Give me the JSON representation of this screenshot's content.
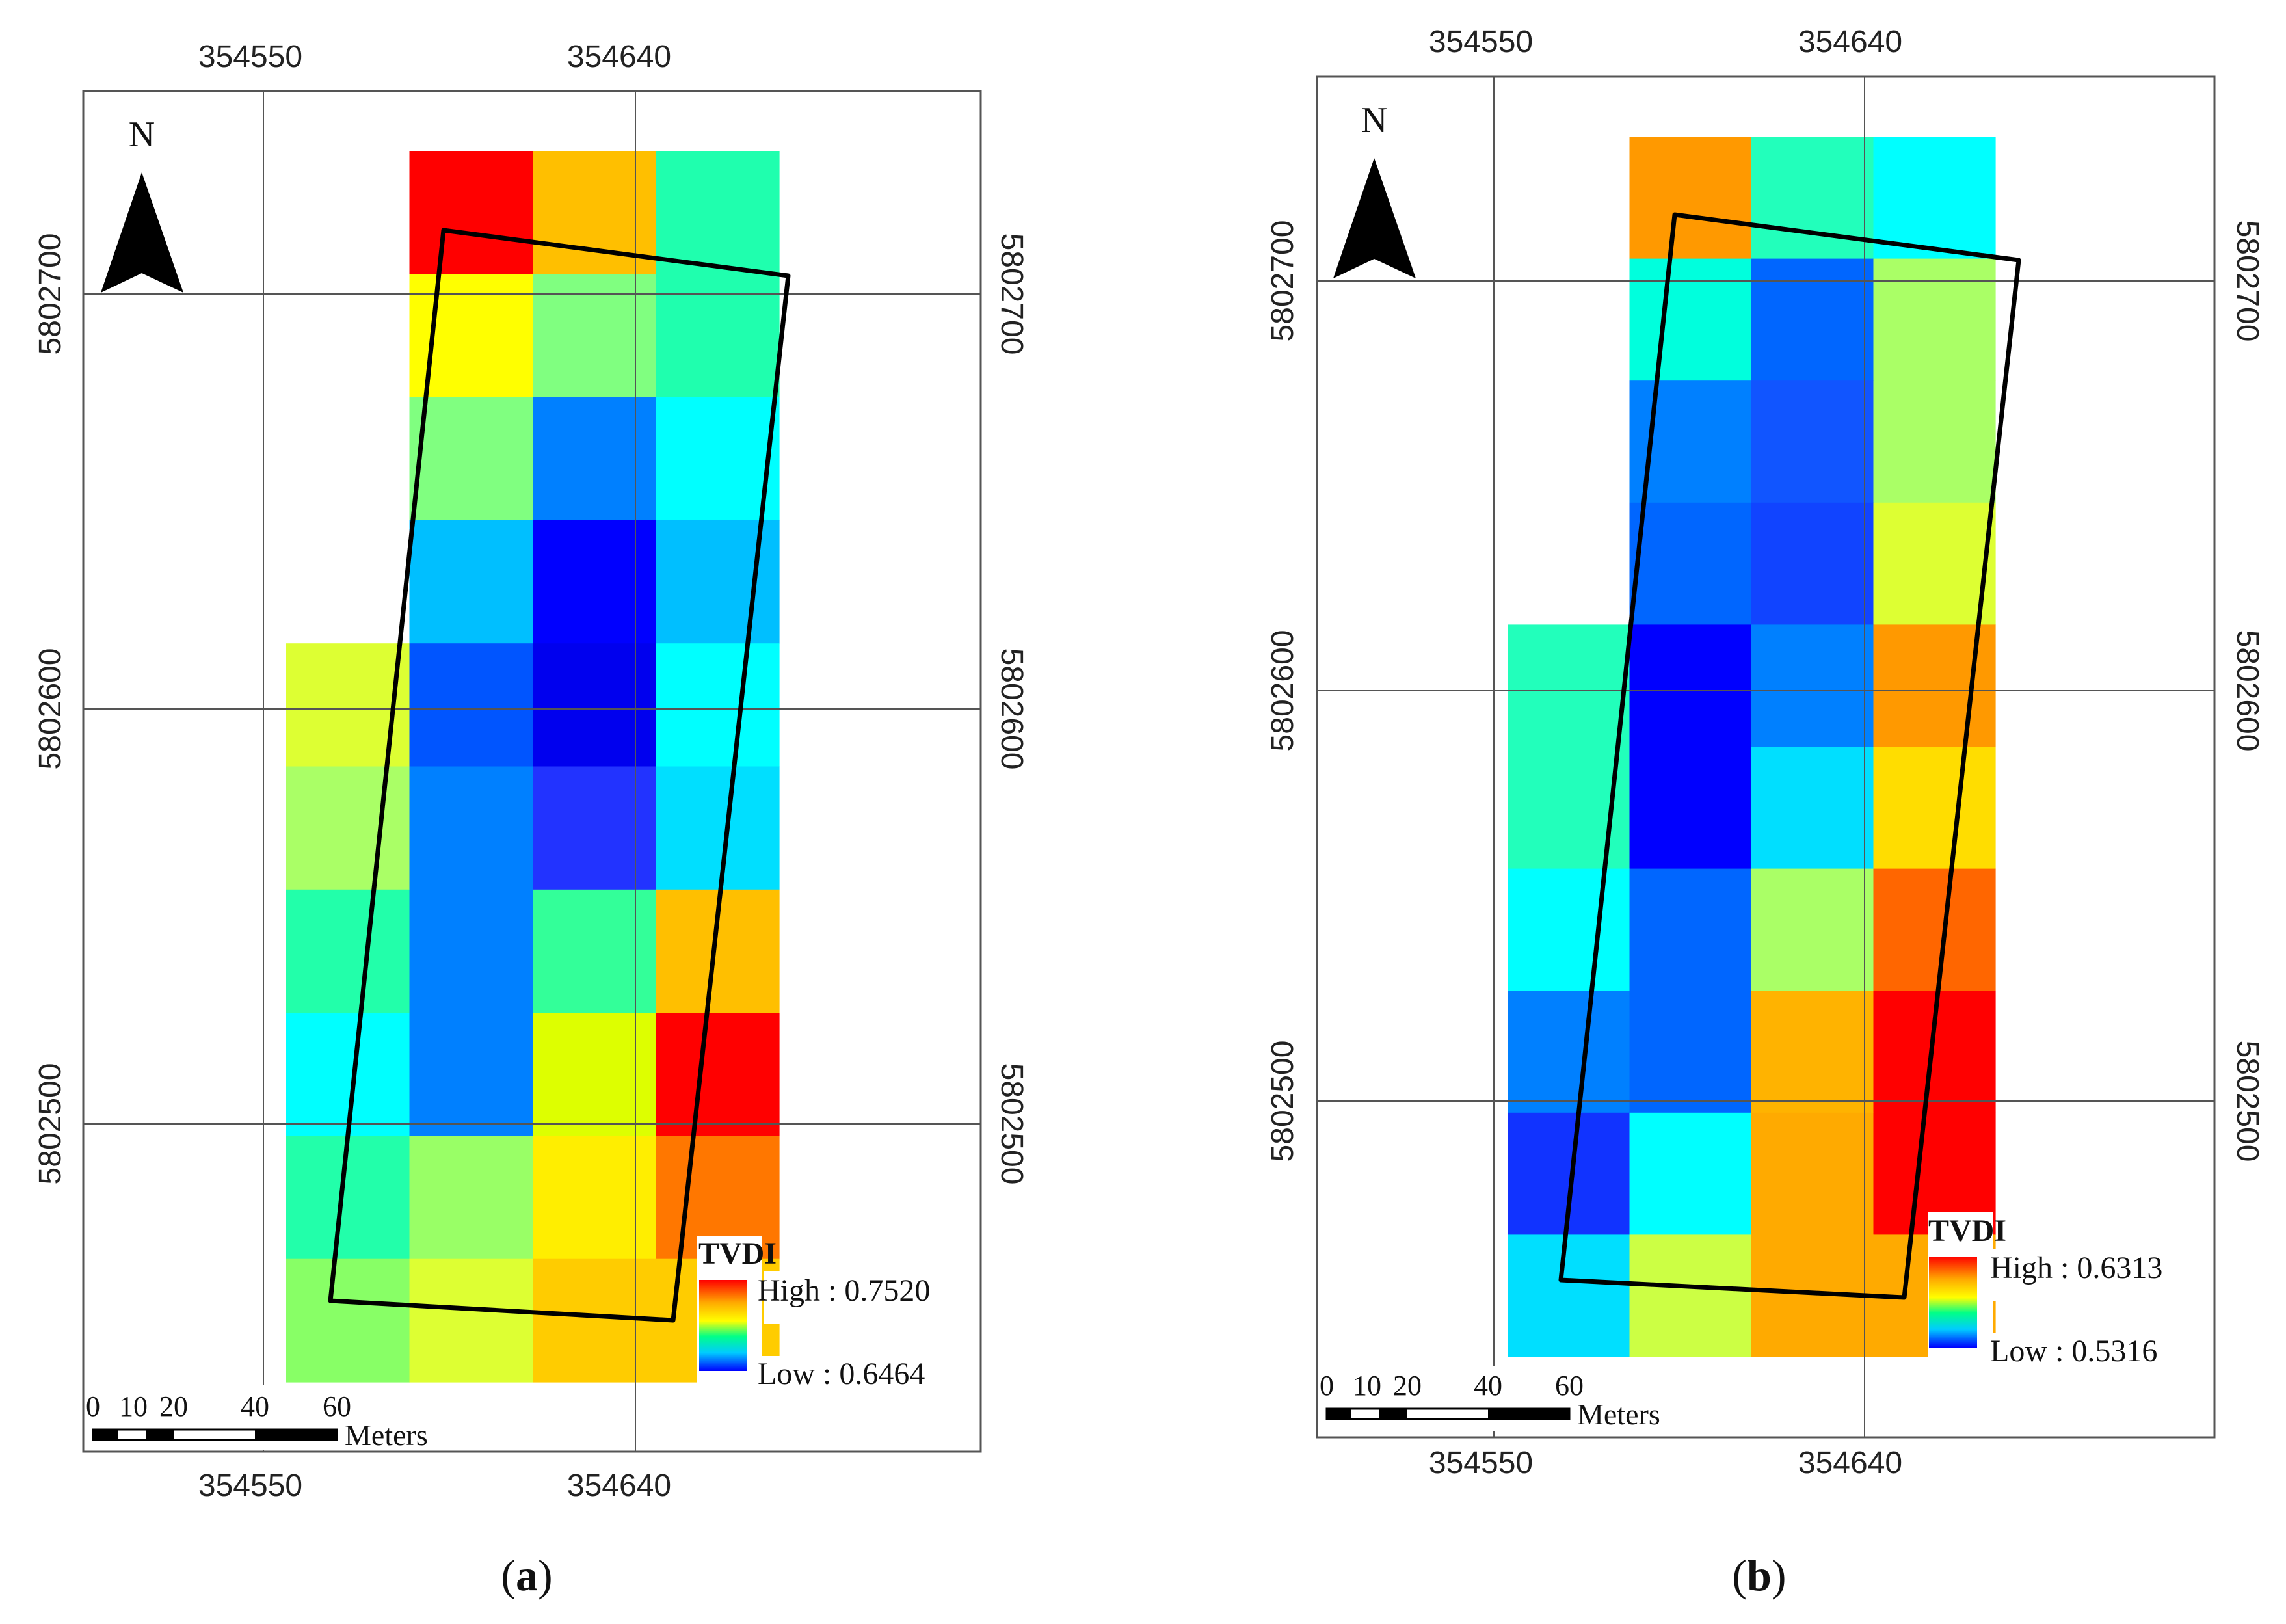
{
  "panels": [
    {
      "id": "a",
      "caption_label": "a",
      "x_top_ticks": [
        "354550",
        "354640"
      ],
      "x_bottom_ticks": [
        "354550",
        "354640"
      ],
      "y_left_ticks": [
        "5802700",
        "5802600",
        "5802500"
      ],
      "y_right_ticks": [
        "5802700",
        "5802600",
        "5802500"
      ],
      "north_label": "N",
      "legend": {
        "title": "TVDI",
        "high_label": "High : 0.7520",
        "low_label": "Low : 0.6464"
      },
      "scalebar": {
        "ticks": [
          "0",
          "10",
          "20",
          "40",
          "60"
        ],
        "unit": "Meters"
      },
      "grid": {
        "cols": 4,
        "rows": 10,
        "cells": [
          [
            null,
            "#ff0000",
            "#ffbf00",
            "#1fffae"
          ],
          [
            null,
            "#ffff00",
            "#80ff80",
            "#1fffae"
          ],
          [
            null,
            "#80ff80",
            "#0080ff",
            "#00ffff"
          ],
          [
            null,
            "#00bfff",
            "#0000ff",
            "#00bfff"
          ],
          [
            "#ddff33",
            "#0055ff",
            "#0000ee",
            "#00ffff"
          ],
          [
            "#aaff66",
            "#0080ff",
            "#2233ff",
            "#00dfff"
          ],
          [
            "#22ffaa",
            "#0080ff",
            "#33ff99",
            "#ffbf00"
          ],
          [
            "#00ffff",
            "#0080ff",
            "#ddff00",
            "#ff0000"
          ],
          [
            "#22ffaa",
            "#99ff66",
            "#ffee00",
            "#ff7700"
          ],
          [
            "#88ff66",
            "#ddff33",
            "#ffcc00",
            "#ffcc00"
          ]
        ]
      }
    },
    {
      "id": "b",
      "caption_label": "b",
      "x_top_ticks": [
        "354550",
        "354640"
      ],
      "x_bottom_ticks": [
        "354550",
        "354640"
      ],
      "y_left_ticks": [
        "5802700",
        "5802600",
        "5802500"
      ],
      "y_right_ticks": [
        "5802700",
        "5802600",
        "5802500"
      ],
      "north_label": "N",
      "legend": {
        "title": "TVDI",
        "high_label": "High : 0.6313",
        "low_label": "Low : 0.5316"
      },
      "scalebar": {
        "ticks": [
          "0",
          "10",
          "20",
          "40",
          "60"
        ],
        "unit": "Meters"
      },
      "grid": {
        "cols": 4,
        "rows": 10,
        "cells": [
          [
            null,
            "#ff9900",
            "#22ffbb",
            "#00ffff"
          ],
          [
            null,
            "#00ffdd",
            "#0066ff",
            "#aaff66"
          ],
          [
            null,
            "#0080ff",
            "#1155ff",
            "#aaff66"
          ],
          [
            null,
            "#0066ff",
            "#1144ff",
            "#ddff33"
          ],
          [
            "#22ffbb",
            "#0000ff",
            "#0080ff",
            "#ff9900"
          ],
          [
            "#22ffbb",
            "#0000ff",
            "#00dfff",
            "#ffdd00"
          ],
          [
            "#00ffff",
            "#0066ff",
            "#aaff66",
            "#ff6600"
          ],
          [
            "#0080ff",
            "#0066ff",
            "#ffb300",
            "#ff0000"
          ],
          [
            "#1133ff",
            "#00ffff",
            "#ffaa00",
            "#ff0000"
          ],
          [
            "#00dfff",
            "#ccff44",
            "#ffaa00",
            "#ffaa00"
          ]
        ]
      }
    }
  ]
}
